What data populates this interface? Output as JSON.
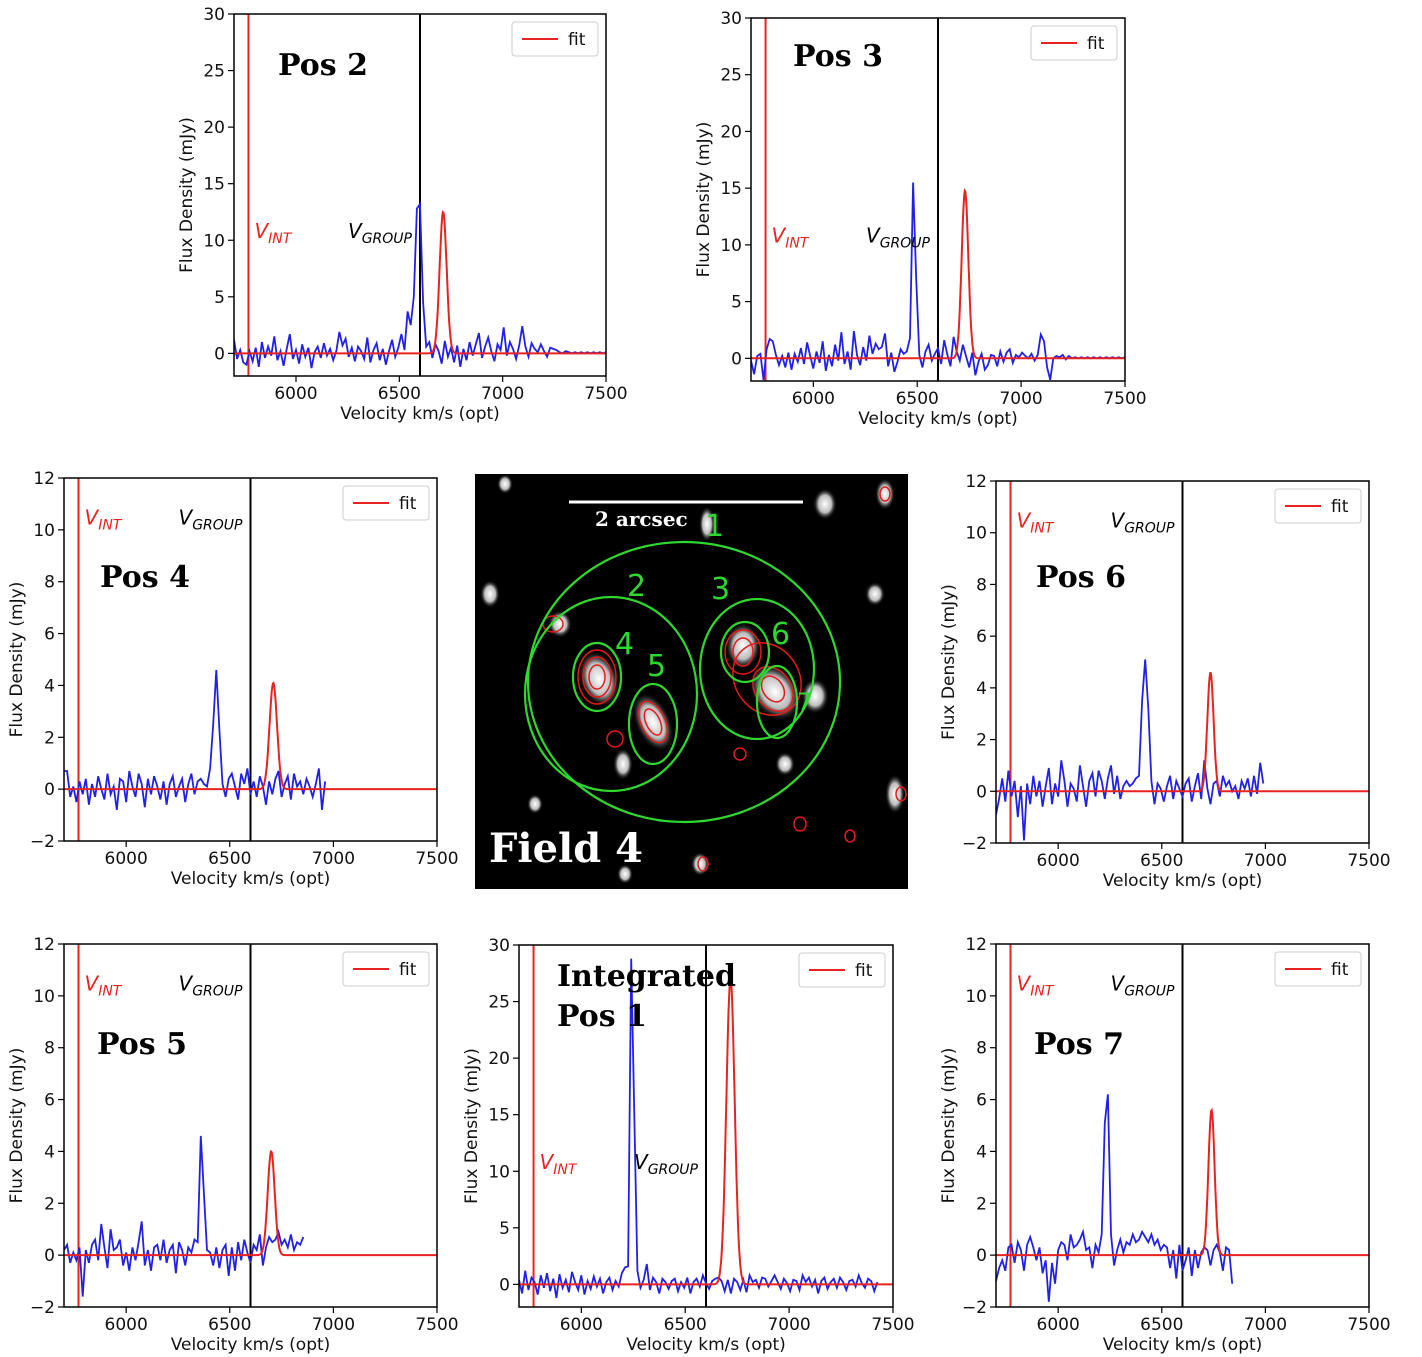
{
  "chart_data": [
    {
      "type": "line",
      "panel_label": [
        "Pos 2"
      ],
      "xlabel": "Velocity km/s (opt)",
      "ylabel": "Flux Density (mJy)",
      "xlim": [
        5700,
        7500
      ],
      "ylim": [
        -2,
        30
      ],
      "xticks": [
        6000,
        6500,
        7000,
        7500
      ],
      "yticks": [
        0,
        5,
        10,
        15,
        20,
        25,
        30
      ],
      "legend": {
        "label": "fit",
        "position": "top-right"
      },
      "v_int": {
        "label_main": "V",
        "label_sub": "INT",
        "x": 5770,
        "label_y": 10.2
      },
      "v_group": {
        "label_main": "V",
        "label_sub": "GROUP",
        "x": 6600,
        "label_y": 10.2
      },
      "fit": {
        "center": 6712,
        "amplitude": 12.5,
        "sigma": 17
      },
      "series": [
        {
          "x_start": 5700,
          "x_step": 15,
          "values": [
            1.2,
            -0.5,
            0.3,
            -0.8,
            -1.0,
            0.2,
            -0.7,
            0.5,
            -1.2,
            1.0,
            -0.4,
            0.6,
            -0.2,
            1.5,
            -0.6,
            0.2,
            -1.1,
            0.4,
            1.7,
            -0.5,
            0.3,
            -0.9,
            0.8,
            -0.3,
            0.5,
            -1.3,
            0.1,
            0.6,
            -0.4,
            0.9,
            -0.2,
            0.4,
            -0.6,
            0.2,
            1.9,
            0.7,
            1.3,
            -0.3,
            0.5,
            -0.7,
            0.6,
            0.2,
            -0.5,
            1.4,
            -0.8,
            0.3,
            0.9,
            -0.6,
            0.4,
            -1.0,
            0.2,
            1.2,
            -0.3,
            0.5,
            1.7,
            0.3,
            3.7,
            2.5,
            5.0,
            12.8,
            13.2,
            4.5,
            0.6,
            1.0,
            -0.4,
            0.8,
            0.2,
            -0.9,
            1.1,
            -0.3,
            0.5,
            -0.8,
            0.7,
            -1.2,
            0.4,
            -0.6,
            1.0,
            -0.2,
            0.8,
            1.8,
            -0.4,
            0.6,
            1.4,
            0.2,
            -0.7,
            0.8,
            0.3,
            2.3,
            -0.2,
            1.0,
            0.4,
            -0.5,
            0.7,
            2.4,
            0.6,
            -0.3,
            0.9,
            0.4,
            0.1,
            0.8,
            0.2,
            -0.3,
            0.5,
            0.4,
            0.3,
            0.1,
            0.0,
            0.2,
            0.1,
            0.0,
            0.1,
            0.0,
            0.1,
            0.0,
            0.1,
            0.0,
            0.1,
            0.0,
            0.1,
            0.0,
            0.1
          ]
        }
      ]
    },
    {
      "type": "line",
      "panel_label": [
        "Pos 3"
      ],
      "xlabel": "Velocity km/s (opt)",
      "ylabel": "Flux Density (mJy)",
      "xlim": [
        5700,
        7500
      ],
      "ylim": [
        -2,
        30
      ],
      "xticks": [
        6000,
        6500,
        7000,
        7500
      ],
      "yticks": [
        0,
        5,
        10,
        15,
        20,
        25,
        30
      ],
      "legend": {
        "label": "fit",
        "position": "top-right"
      },
      "v_int": {
        "label_main": "V",
        "label_sub": "INT",
        "x": 5770,
        "label_y": 10.2
      },
      "v_group": {
        "label_main": "V",
        "label_sub": "GROUP",
        "x": 6600,
        "label_y": 10.2
      },
      "fit": {
        "center": 6730,
        "amplitude": 14.8,
        "sigma": 16
      },
      "series": [
        {
          "x_start": 5700,
          "x_step": 15,
          "values": [
            -0.2,
            -1.4,
            0.2,
            0.4,
            -1.9,
            0.8,
            1.7,
            1.5,
            0.3,
            -0.6,
            0.2,
            -0.8,
            0.5,
            -1.0,
            0.4,
            -0.3,
            0.9,
            -0.5,
            1.4,
            0.2,
            -0.9,
            0.6,
            -0.4,
            1.5,
            -1.1,
            0.3,
            -0.7,
            1.2,
            -0.2,
            2.3,
            -0.5,
            0.6,
            -1.0,
            2.4,
            0.3,
            -0.6,
            1.0,
            -0.2,
            2.0,
            0.4,
            1.3,
            0.8,
            1.0,
            2.2,
            -0.7,
            0.5,
            -1.2,
            -0.3,
            0.8,
            0.4,
            0.6,
            1.8,
            15.5,
            7.0,
            0.3,
            -0.8,
            0.6,
            1.2,
            -0.2,
            0.4,
            0.9,
            -0.5,
            1.6,
            0.3,
            -0.7,
            1.9,
            0.6,
            -0.2,
            1.2,
            0.2,
            -0.8,
            0.5,
            -1.5,
            -0.3,
            0.4,
            -1.0,
            -0.6,
            0.3,
            0.2,
            -0.7,
            0.6,
            -0.3,
            0.5,
            0.8,
            -0.4,
            0.3,
            0.1,
            0.5,
            0.2,
            0.0,
            0.4,
            -0.2,
            0.3,
            2.1,
            1.5,
            -0.8,
            -1.9,
            0.0,
            0.2,
            0.1,
            0.3,
            -0.1,
            0.2,
            0.0,
            0.1,
            0.0,
            0.1,
            0.0,
            0.1,
            0.0,
            0.1,
            0.0,
            0.1,
            0.0,
            0.1,
            0.0,
            0.1,
            0.0,
            0.1,
            0.0,
            0.1
          ]
        }
      ]
    },
    {
      "type": "line",
      "panel_label": [
        "Pos 4"
      ],
      "xlabel": "Velocity km/s (opt)",
      "ylabel": "Flux Density (mJy)",
      "xlim": [
        5700,
        7500
      ],
      "ylim": [
        -2,
        12
      ],
      "xticks": [
        6000,
        6500,
        7000,
        7500
      ],
      "yticks": [
        -2,
        0,
        2,
        4,
        6,
        8,
        10,
        12
      ],
      "legend": {
        "label": "fit",
        "position": "top-right"
      },
      "v_int": {
        "label_main": "V",
        "label_sub": "INT",
        "x": 5770,
        "label_y": 10.2
      },
      "v_group": {
        "label_main": "V",
        "label_sub": "GROUP",
        "x": 6600,
        "label_y": 10.2
      },
      "fit": {
        "center": 6710,
        "amplitude": 4.1,
        "sigma": 18
      },
      "series": [
        {
          "x_start": 5700,
          "x_step": 15,
          "values": [
            0.7,
            0.7,
            -0.3,
            0.1,
            -0.5,
            0.3,
            -0.2,
            0.4,
            -0.6,
            0.2,
            -0.3,
            0.5,
            0.0,
            -0.4,
            0.6,
            -0.2,
            0.1,
            -0.8,
            0.4,
            0.3,
            -0.5,
            0.7,
            0.1,
            -0.3,
            0.6,
            0.2,
            -0.7,
            0.4,
            -0.2,
            0.5,
            0.1,
            -0.4,
            0.3,
            -0.6,
            0.2,
            0.5,
            -0.3,
            0.1,
            0.4,
            -0.5,
            0.2,
            0.6,
            -0.2,
            0.3,
            0.4,
            0.2,
            0.1,
            0.8,
            2.5,
            4.6,
            2.3,
            0.2,
            -0.3,
            0.4,
            0.6,
            0.1,
            -0.4,
            0.6,
            0.2,
            0.8,
            -0.2,
            0.3,
            -0.3,
            0.5,
            0.1,
            -0.6,
            0.3,
            -0.2,
            0.4,
            0.7,
            -0.3,
            0.2,
            0.5,
            -0.4,
            0.6,
            0.1,
            0.3,
            -0.2,
            0.4,
            0.1,
            -0.3,
            0.2,
            0.8,
            -0.8,
            0.3
          ]
        }
      ]
    },
    {
      "type": "line",
      "panel_label": [
        "Pos 6"
      ],
      "xlabel": "Velocity km/s (opt)",
      "ylabel": "Flux Density (mJy)",
      "xlim": [
        5700,
        7500
      ],
      "ylim": [
        -2,
        12
      ],
      "xticks": [
        6000,
        6500,
        7000,
        7500
      ],
      "yticks": [
        -2,
        0,
        2,
        4,
        6,
        8,
        10,
        12
      ],
      "legend": {
        "label": "fit",
        "position": "top-right"
      },
      "v_int": {
        "label_main": "V",
        "label_sub": "INT",
        "x": 5770,
        "label_y": 10.2
      },
      "v_group": {
        "label_main": "V",
        "label_sub": "GROUP",
        "x": 6600,
        "label_y": 10.2
      },
      "fit": {
        "center": 6735,
        "amplitude": 4.6,
        "sigma": 15
      },
      "series": [
        {
          "x_start": 5700,
          "x_step": 15,
          "values": [
            -0.9,
            -0.3,
            0.5,
            -0.4,
            0.8,
            -0.2,
            0.4,
            -1.0,
            0.2,
            -1.9,
            0.3,
            -0.5,
            0.6,
            -0.2,
            0.4,
            -0.6,
            0.2,
            0.9,
            -0.5,
            0.3,
            -0.2,
            1.2,
            0.4,
            -0.6,
            0.3,
            0.1,
            -0.4,
            1.0,
            0.2,
            -0.6,
            0.4,
            0.7,
            -0.2,
            0.8,
            0.4,
            -0.3,
            0.5,
            1.0,
            -0.1,
            0.6,
            -0.3,
            0.2,
            0.4,
            0.2,
            0.3,
            0.5,
            0.6,
            3.5,
            5.1,
            3.2,
            0.4,
            -0.5,
            0.3,
            0.1,
            -0.4,
            0.2,
            0.6,
            -0.3,
            0.4,
            0.1,
            -0.2,
            0.3,
            0.5,
            -0.4,
            0.2,
            0.7,
            -0.3,
            1.2,
            0.1,
            -0.5,
            0.3,
            0.4,
            -0.2,
            0.6,
            0.2,
            0.4,
            0.0,
            0.2,
            -0.3,
            0.4,
            0.1,
            0.5,
            -0.2,
            0.6,
            -0.1,
            1.1,
            0.3
          ]
        }
      ]
    },
    {
      "type": "line",
      "panel_label": [
        "Pos 5"
      ],
      "xlabel": "Velocity km/s (opt)",
      "ylabel": "Flux Density (mJy)",
      "xlim": [
        5700,
        7500
      ],
      "ylim": [
        -2,
        12
      ],
      "xticks": [
        6000,
        6500,
        7000,
        7500
      ],
      "yticks": [
        -2,
        0,
        2,
        4,
        6,
        8,
        10,
        12
      ],
      "legend": {
        "label": "fit",
        "position": "top-right"
      },
      "v_int": {
        "label_main": "V",
        "label_sub": "INT",
        "x": 5770,
        "label_y": 10.2
      },
      "v_group": {
        "label_main": "V",
        "label_sub": "GROUP",
        "x": 6600,
        "label_y": 10.2
      },
      "fit": {
        "center": 6700,
        "amplitude": 4.0,
        "sigma": 17
      },
      "series": [
        {
          "x_start": 5700,
          "x_step": 15,
          "values": [
            0.2,
            0.4,
            -0.3,
            0.1,
            -0.2,
            0.3,
            -1.6,
            0.2,
            -0.3,
            0.4,
            0.6,
            -0.2,
            1.2,
            0.3,
            -0.5,
            1.0,
            0.2,
            0.3,
            0.6,
            -0.4,
            0.1,
            -0.6,
            0.3,
            -0.2,
            0.5,
            1.3,
            -0.4,
            0.2,
            -0.6,
            0.3,
            0.4,
            -0.2,
            0.6,
            -0.3,
            0.2,
            0.4,
            -0.7,
            0.5,
            0.2,
            -0.4,
            0.3,
            0.1,
            0.6,
            0.5,
            4.6,
            2.4,
            0.2,
            0.1,
            -0.4,
            0.3,
            -0.5,
            0.2,
            0.4,
            -0.8,
            0.3,
            -0.6,
            0.5,
            -0.2,
            0.6,
            0.1,
            -0.3,
            0.4,
            0.2,
            0.8,
            -0.4,
            0.3,
            0.7,
            0.5,
            0.6,
            0.9,
            0.4,
            0.6,
            0.3,
            0.8,
            0.2,
            0.5,
            0.4,
            0.7
          ]
        }
      ]
    },
    {
      "type": "line",
      "panel_label": [
        "Integrated",
        "Pos 1"
      ],
      "xlabel": "Velocity km/s (opt)",
      "ylabel": "Flux Density (mJy)",
      "xlim": [
        5700,
        7500
      ],
      "ylim": [
        -2,
        30
      ],
      "xticks": [
        6000,
        6500,
        7000,
        7500
      ],
      "yticks": [
        0,
        5,
        10,
        15,
        20,
        25,
        30
      ],
      "legend": {
        "label": "fit",
        "position": "top-right"
      },
      "v_int": {
        "label_main": "V",
        "label_sub": "INT",
        "x": 5770,
        "label_y": 10.2
      },
      "v_group": {
        "label_main": "V",
        "label_sub": "GROUP",
        "x": 6600,
        "label_y": 10.2
      },
      "fit": {
        "center": 6718,
        "amplitude": 27.0,
        "sigma": 20
      },
      "series": [
        {
          "x_start": 5700,
          "x_step": 15,
          "values": [
            0.4,
            -0.8,
            1.2,
            -0.5,
            0.6,
            0.2,
            -0.9,
            0.8,
            -0.3,
            1.0,
            -0.6,
            0.5,
            -1.2,
            0.9,
            -0.3,
            0.4,
            -0.7,
            1.1,
            0.2,
            -0.5,
            0.8,
            -0.9,
            0.3,
            -0.4,
            0.7,
            -0.2,
            0.5,
            -0.8,
            0.2,
            0.6,
            -0.5,
            0.3,
            -0.2,
            1.0,
            1.5,
            1.6,
            28.8,
            15.0,
            1.2,
            -0.3,
            0.4,
            1.8,
            -0.5,
            0.6,
            0.2,
            -0.8,
            0.5,
            0.2,
            -0.4,
            0.3,
            0.5,
            -0.6,
            0.2,
            -0.3,
            0.6,
            -0.8,
            0.2,
            0.5,
            -0.2,
            0.8,
            0.1,
            -0.4,
            0.3,
            0.5,
            0.6,
            0.3,
            -0.6,
            0.4,
            -0.8,
            0.5,
            0.2,
            -0.5,
            0.4,
            -0.7,
            0.8,
            0.2,
            0.4,
            -0.3,
            0.6,
            0.5,
            -0.2,
            0.3,
            0.8,
            0.2,
            -0.4,
            0.5,
            0.1,
            -0.6,
            0.4,
            0.3,
            -0.5,
            0.8,
            0.2,
            0.6,
            -0.2,
            0.4,
            -0.8,
            0.3,
            0.6,
            -0.4,
            0.2,
            0.5,
            -0.3,
            0.6,
            0.2,
            -0.5,
            0.3,
            0.4,
            -0.2,
            0.8,
            0.1,
            -0.3,
            0.5,
            0.3,
            -0.6,
            0.2
          ]
        }
      ]
    },
    {
      "type": "line",
      "panel_label": [
        "Pos 7"
      ],
      "xlabel": "Velocity km/s (opt)",
      "ylabel": "Flux Density (mJy)",
      "xlim": [
        5700,
        7500
      ],
      "ylim": [
        -2,
        12
      ],
      "xticks": [
        6000,
        6500,
        7000,
        7500
      ],
      "yticks": [
        -2,
        0,
        2,
        4,
        6,
        8,
        10,
        12
      ],
      "legend": {
        "label": "fit",
        "position": "top-right"
      },
      "v_int": {
        "label_main": "V",
        "label_sub": "INT",
        "x": 5770,
        "label_y": 10.2
      },
      "v_group": {
        "label_main": "V",
        "label_sub": "GROUP",
        "x": 6600,
        "label_y": 10.2
      },
      "fit": {
        "center": 6740,
        "amplitude": 5.6,
        "sigma": 15
      },
      "series": [
        {
          "x_start": 5700,
          "x_step": 15,
          "values": [
            -1.0,
            -0.5,
            -0.2,
            -0.6,
            0.3,
            0.4,
            -0.3,
            0.5,
            0.2,
            -0.6,
            0.4,
            0.7,
            0.3,
            -0.2,
            0.3,
            -0.7,
            -0.2,
            -1.8,
            -0.3,
            -1.1,
            0.2,
            0.5,
            0.4,
            -0.2,
            0.8,
            0.3,
            0.4,
            0.6,
            0.9,
            0.2,
            0.3,
            -0.5,
            0.4,
            0.1,
            0.8,
            5.1,
            6.2,
            0.8,
            -0.4,
            0.2,
            0.6,
            0.1,
            0.5,
            0.4,
            0.8,
            0.5,
            0.6,
            0.9,
            0.7,
            0.5,
            0.8,
            0.4,
            0.6,
            0.2,
            0.4,
            0.3,
            -0.5,
            0.2,
            -0.9,
            0.4,
            -0.6,
            -0.2,
            0.3,
            -0.8,
            0.2,
            -0.5,
            0.1,
            0.3,
            0.2,
            -0.4,
            0.2,
            0.4,
            0.1,
            -0.6,
            0.3,
            0.2,
            -1.1
          ]
        }
      ]
    }
  ],
  "image_panel": {
    "title": "Field 4",
    "scale_bar_label": "2 arcsec",
    "region_labels": [
      "1",
      "2",
      "3",
      "4",
      "5",
      "6",
      "7"
    ]
  },
  "colors": {
    "data_line": "#2020e8",
    "fit_line": "#e8231f",
    "v_int_line": "#e8231f",
    "v_group_line": "#000000",
    "region_circle": "#2fd82f",
    "contour": "#e51a1a"
  }
}
